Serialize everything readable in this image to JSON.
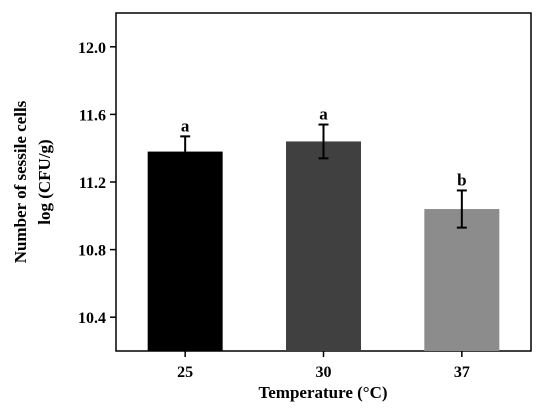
{
  "chart_data": {
    "type": "bar",
    "categories": [
      "25",
      "30",
      "37"
    ],
    "values": [
      11.38,
      11.44,
      11.04
    ],
    "errors": [
      0.09,
      0.1,
      0.11
    ],
    "significance_letters": [
      "a",
      "a",
      "b"
    ],
    "bar_colors": [
      "#000000",
      "#404040",
      "#8c8c8c"
    ],
    "xlabel": "Temperature (°C)",
    "ylabel_line1": "Number of sessile cells",
    "ylabel_line2": "log (CFU/g)",
    "ylim": [
      10.2,
      12.2
    ],
    "yticks": [
      "10.4",
      "10.8",
      "11.2",
      "11.6",
      "12.0"
    ],
    "grid": false,
    "legend": "none"
  }
}
